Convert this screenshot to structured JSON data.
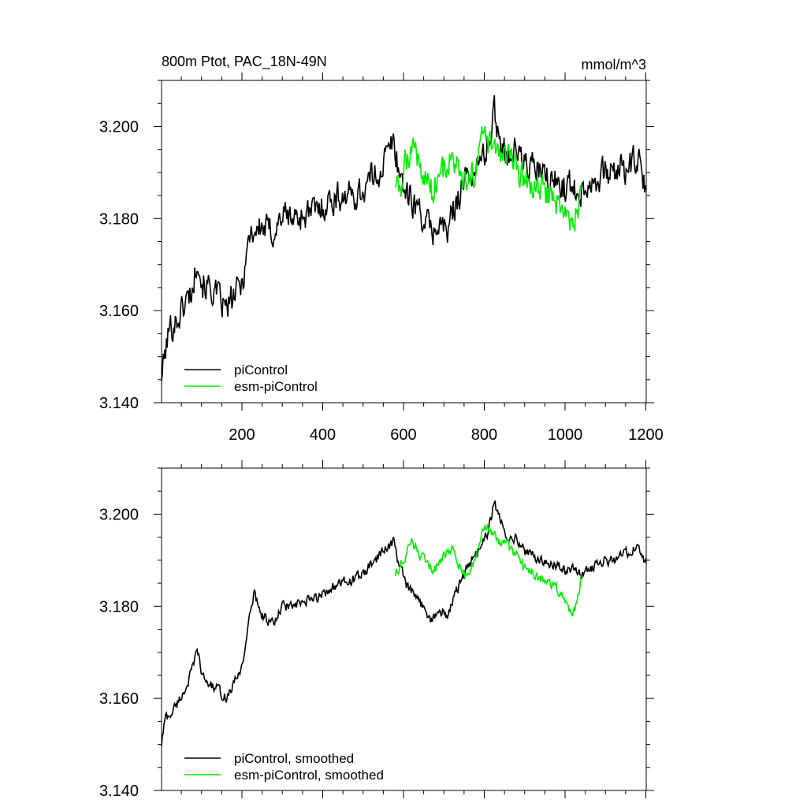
{
  "chart_data": [
    {
      "type": "line",
      "title": "800m Ptot, PAC_18N-49N",
      "units": "mmol/m^3",
      "xlabel": "",
      "ylabel": "",
      "xlim": [
        1,
        1201
      ],
      "ylim": [
        3.14,
        3.21
      ],
      "xticks": [
        200,
        400,
        600,
        800,
        1000,
        1200
      ],
      "xtick_labels": [
        "200",
        "400",
        "600",
        "800",
        "1000",
        "1200"
      ],
      "yticks": [
        3.14,
        3.16,
        3.18,
        3.2
      ],
      "ytick_labels": [
        "3.140",
        "3.160",
        "3.180",
        "3.200"
      ],
      "legend_position": "bottom-left",
      "series": [
        {
          "name": "piControl",
          "color": "#000000",
          "x": [
            1,
            20,
            40,
            60,
            80,
            90,
            100,
            120,
            140,
            160,
            180,
            200,
            220,
            250,
            280,
            300,
            330,
            360,
            390,
            420,
            450,
            480,
            500,
            520,
            540,
            560,
            575,
            590,
            610,
            630,
            650,
            670,
            690,
            710,
            730,
            750,
            770,
            790,
            810,
            825,
            840,
            860,
            880,
            900,
            920,
            940,
            960,
            980,
            1000,
            1020,
            1040,
            1060,
            1080,
            1100,
            1120,
            1140,
            1160,
            1180,
            1201
          ],
          "y": [
            3.146,
            3.156,
            3.158,
            3.162,
            3.165,
            3.173,
            3.166,
            3.165,
            3.163,
            3.16,
            3.163,
            3.166,
            3.177,
            3.178,
            3.177,
            3.181,
            3.18,
            3.181,
            3.182,
            3.184,
            3.185,
            3.185,
            3.186,
            3.189,
            3.19,
            3.194,
            3.197,
            3.19,
            3.185,
            3.183,
            3.18,
            3.177,
            3.179,
            3.177,
            3.184,
            3.188,
            3.19,
            3.192,
            3.196,
            3.203,
            3.197,
            3.194,
            3.195,
            3.192,
            3.191,
            3.19,
            3.188,
            3.188,
            3.187,
            3.187,
            3.186,
            3.188,
            3.189,
            3.19,
            3.19,
            3.191,
            3.191,
            3.193,
            3.185
          ]
        },
        {
          "name": "esm-piControl",
          "color": "#00ee00",
          "x": [
            580,
            590,
            600,
            610,
            620,
            630,
            640,
            650,
            660,
            670,
            680,
            690,
            700,
            720,
            740,
            760,
            780,
            790,
            800,
            820,
            840,
            860,
            880,
            900,
            920,
            940,
            960,
            980,
            1000,
            1010,
            1020,
            1040
          ],
          "y": [
            3.188,
            3.185,
            3.19,
            3.194,
            3.195,
            3.196,
            3.192,
            3.188,
            3.189,
            3.186,
            3.188,
            3.19,
            3.191,
            3.193,
            3.189,
            3.186,
            3.191,
            3.196,
            3.198,
            3.195,
            3.194,
            3.193,
            3.19,
            3.188,
            3.187,
            3.186,
            3.185,
            3.184,
            3.181,
            3.179,
            3.178,
            3.186
          ]
        }
      ]
    },
    {
      "type": "line",
      "title": "",
      "xlim": [
        1,
        1201
      ],
      "ylim": [
        3.14,
        3.21
      ],
      "yticks": [
        3.14,
        3.16,
        3.18,
        3.2
      ],
      "ytick_labels": [
        "3.140",
        "3.160",
        "3.180",
        "3.200"
      ],
      "legend_position": "bottom-left",
      "series": [
        {
          "name": "piControl, smoothed",
          "color": "#000000",
          "x": [
            1,
            10,
            20,
            40,
            60,
            80,
            90,
            100,
            120,
            140,
            160,
            180,
            200,
            220,
            230,
            250,
            280,
            300,
            330,
            360,
            390,
            420,
            450,
            480,
            500,
            520,
            540,
            560,
            575,
            590,
            610,
            630,
            650,
            670,
            690,
            710,
            730,
            750,
            770,
            790,
            810,
            825,
            840,
            860,
            880,
            900,
            920,
            940,
            960,
            980,
            1000,
            1020,
            1040,
            1060,
            1080,
            1100,
            1120,
            1140,
            1160,
            1180,
            1201
          ],
          "y": [
            3.15,
            3.156,
            3.156,
            3.159,
            3.162,
            3.167,
            3.171,
            3.165,
            3.163,
            3.162,
            3.16,
            3.163,
            3.167,
            3.178,
            3.183,
            3.178,
            3.176,
            3.18,
            3.18,
            3.181,
            3.182,
            3.184,
            3.185,
            3.186,
            3.187,
            3.189,
            3.191,
            3.193,
            3.194,
            3.189,
            3.184,
            3.182,
            3.18,
            3.177,
            3.179,
            3.178,
            3.183,
            3.187,
            3.19,
            3.193,
            3.196,
            3.203,
            3.198,
            3.195,
            3.195,
            3.192,
            3.191,
            3.19,
            3.189,
            3.189,
            3.188,
            3.188,
            3.187,
            3.188,
            3.189,
            3.19,
            3.19,
            3.191,
            3.192,
            3.193,
            3.189
          ]
        },
        {
          "name": "esm-piControl, smoothed",
          "color": "#00ee00",
          "x": [
            580,
            600,
            620,
            640,
            660,
            680,
            700,
            720,
            740,
            760,
            780,
            800,
            820,
            840,
            860,
            880,
            900,
            920,
            940,
            960,
            980,
            1000,
            1020,
            1040
          ],
          "y": [
            3.187,
            3.19,
            3.194,
            3.191,
            3.189,
            3.188,
            3.191,
            3.193,
            3.188,
            3.186,
            3.191,
            3.197,
            3.196,
            3.194,
            3.193,
            3.191,
            3.188,
            3.187,
            3.186,
            3.185,
            3.184,
            3.181,
            3.178,
            3.186
          ]
        }
      ]
    }
  ]
}
